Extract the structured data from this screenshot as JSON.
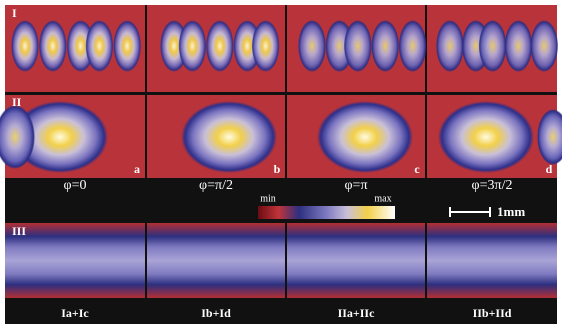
{
  "rows": [
    {
      "label": "I"
    },
    {
      "label": "II"
    },
    {
      "label": "III"
    }
  ],
  "panel_letters": [
    "a",
    "b",
    "c",
    "d"
  ],
  "phases": [
    "φ=0",
    "φ=π/2",
    "φ=π",
    "φ=3π/2"
  ],
  "colorbar": {
    "min": "min",
    "max": "max"
  },
  "scale_bar": "1mm",
  "sums": [
    "Ia+Ic",
    "Ib+Id",
    "IIa+IIc",
    "IIb+IId"
  ]
}
